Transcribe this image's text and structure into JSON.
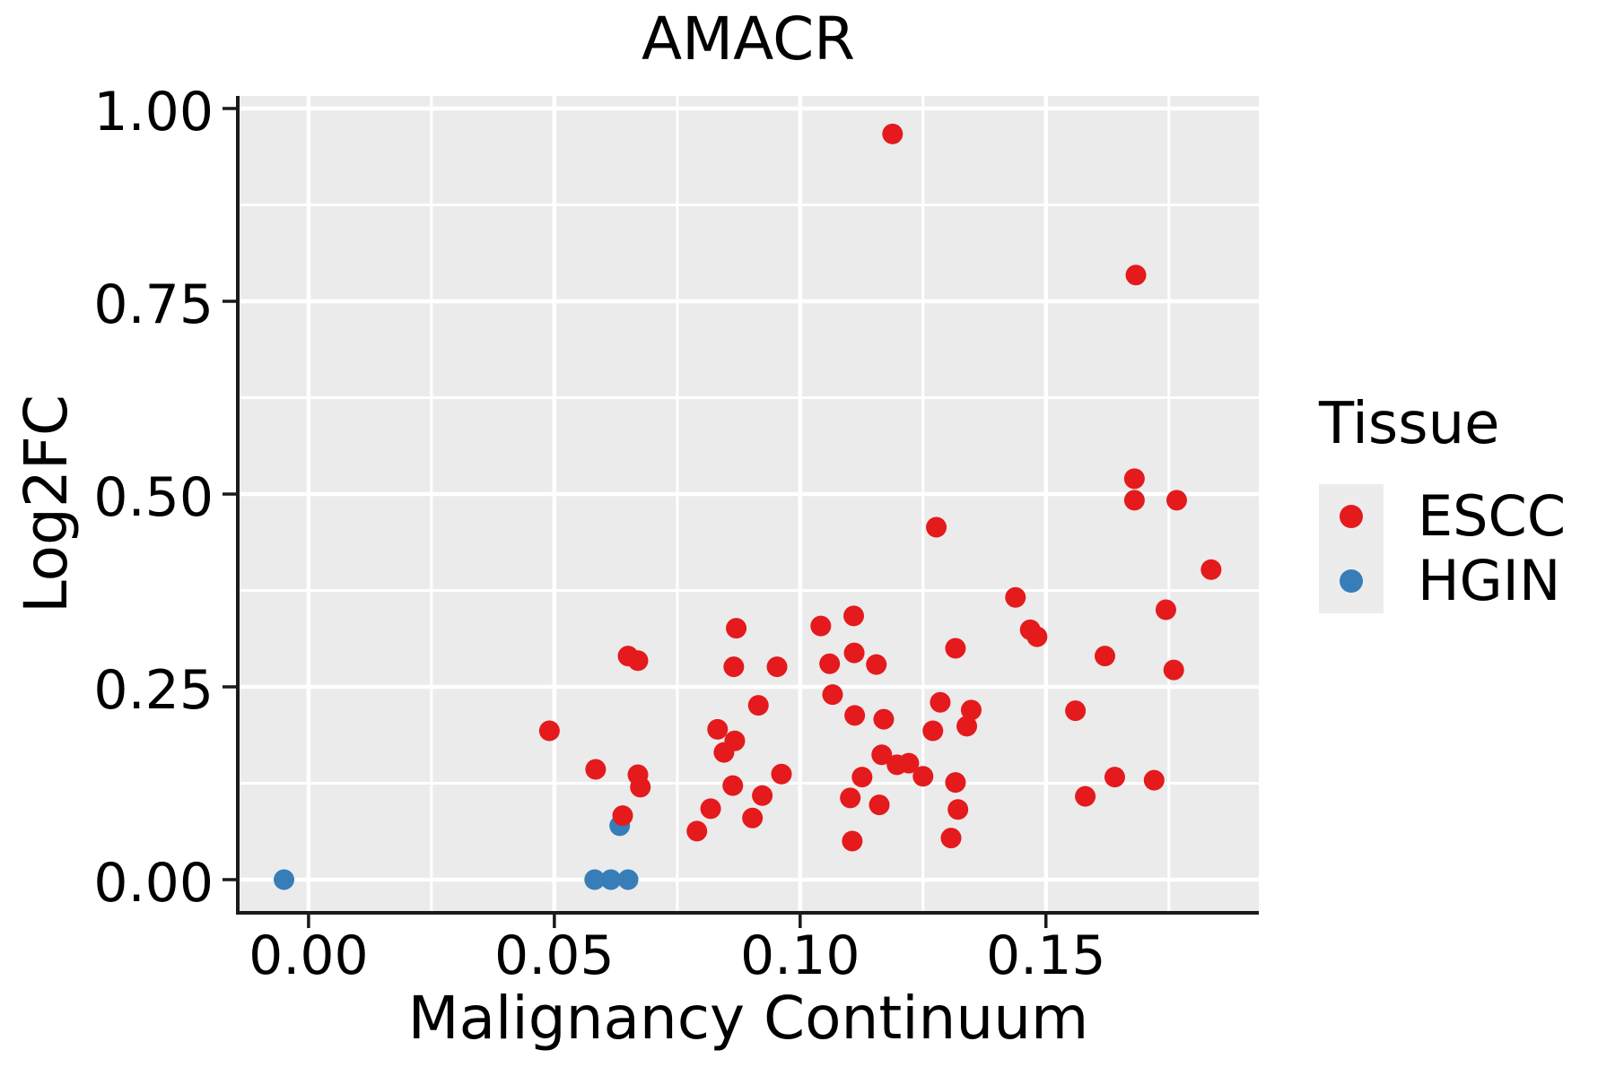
{
  "chart_data": {
    "type": "scatter",
    "title": "AMACR",
    "xlabel": "Malignancy Continuum",
    "ylabel": "Log2FC",
    "legend_title": "Tissue",
    "legend_position": "right",
    "grid": true,
    "xlim": [
      -0.0144,
      0.1933
    ],
    "ylim": [
      -0.043,
      1.0163
    ],
    "x_ticks": {
      "values": [
        0.0,
        0.05,
        0.1,
        0.15
      ],
      "labels": [
        "0.00",
        "0.05",
        "0.10",
        "0.15"
      ],
      "minor": [
        0.025,
        0.075,
        0.125,
        0.175
      ]
    },
    "y_ticks": {
      "values": [
        0.0,
        0.25,
        0.5,
        0.75,
        1.0
      ],
      "labels": [
        "0.00",
        "0.25",
        "0.50",
        "0.75",
        "1.00"
      ],
      "minor": [
        0.125,
        0.375,
        0.625,
        0.875
      ]
    },
    "series": [
      {
        "name": "ESCC",
        "color": "#E41A1C",
        "points": [
          [
            0.049,
            0.193
          ],
          [
            0.065,
            0.29
          ],
          [
            0.067,
            0.284
          ],
          [
            0.087,
            0.326
          ],
          [
            0.0865,
            0.276
          ],
          [
            0.0953,
            0.276
          ],
          [
            0.0915,
            0.226
          ],
          [
            0.0832,
            0.195
          ],
          [
            0.0867,
            0.18
          ],
          [
            0.0845,
            0.165
          ],
          [
            0.0584,
            0.143
          ],
          [
            0.067,
            0.136
          ],
          [
            0.0675,
            0.12
          ],
          [
            0.0863,
            0.122
          ],
          [
            0.0923,
            0.109
          ],
          [
            0.0818,
            0.092
          ],
          [
            0.079,
            0.063
          ],
          [
            0.0903,
            0.08
          ],
          [
            0.0639,
            0.083
          ],
          [
            0.0962,
            0.137
          ],
          [
            0.1066,
            0.24
          ],
          [
            0.1111,
            0.213
          ],
          [
            0.117,
            0.208
          ],
          [
            0.1285,
            0.23
          ],
          [
            0.1348,
            0.22
          ],
          [
            0.1339,
            0.199
          ],
          [
            0.127,
            0.193
          ],
          [
            0.1166,
            0.162
          ],
          [
            0.1197,
            0.149
          ],
          [
            0.1221,
            0.151
          ],
          [
            0.125,
            0.134
          ],
          [
            0.1126,
            0.133
          ],
          [
            0.1102,
            0.106
          ],
          [
            0.1161,
            0.097
          ],
          [
            0.1316,
            0.126
          ],
          [
            0.1321,
            0.091
          ],
          [
            0.1106,
            0.05
          ],
          [
            0.1307,
            0.054
          ],
          [
            0.1042,
            0.329
          ],
          [
            0.1109,
            0.342
          ],
          [
            0.106,
            0.28
          ],
          [
            0.111,
            0.294
          ],
          [
            0.1155,
            0.279
          ],
          [
            0.1316,
            0.3
          ],
          [
            0.1277,
            0.457
          ],
          [
            0.1188,
            0.967
          ],
          [
            0.1683,
            0.784
          ],
          [
            0.168,
            0.52
          ],
          [
            0.168,
            0.492
          ],
          [
            0.1766,
            0.492
          ],
          [
            0.1836,
            0.402
          ],
          [
            0.1744,
            0.35
          ],
          [
            0.1438,
            0.366
          ],
          [
            0.1468,
            0.324
          ],
          [
            0.1482,
            0.315
          ],
          [
            0.162,
            0.29
          ],
          [
            0.176,
            0.272
          ],
          [
            0.156,
            0.219
          ],
          [
            0.164,
            0.133
          ],
          [
            0.172,
            0.129
          ],
          [
            0.158,
            0.108
          ]
        ]
      },
      {
        "name": "HGIN",
        "color": "#377EB8",
        "points": [
          [
            -0.005,
            0.0
          ],
          [
            0.0582,
            0.0
          ],
          [
            0.0615,
            0.0
          ],
          [
            0.065,
            0.0
          ],
          [
            0.0633,
            0.07
          ]
        ]
      }
    ],
    "style": {
      "panel_bg": "#EBEBEB",
      "grid_color": "#FFFFFF",
      "axis_color": "#1a1a1a",
      "text_color": "#000000",
      "legend_key_bg": "#ECECEC",
      "point_radius": 11.5
    }
  }
}
